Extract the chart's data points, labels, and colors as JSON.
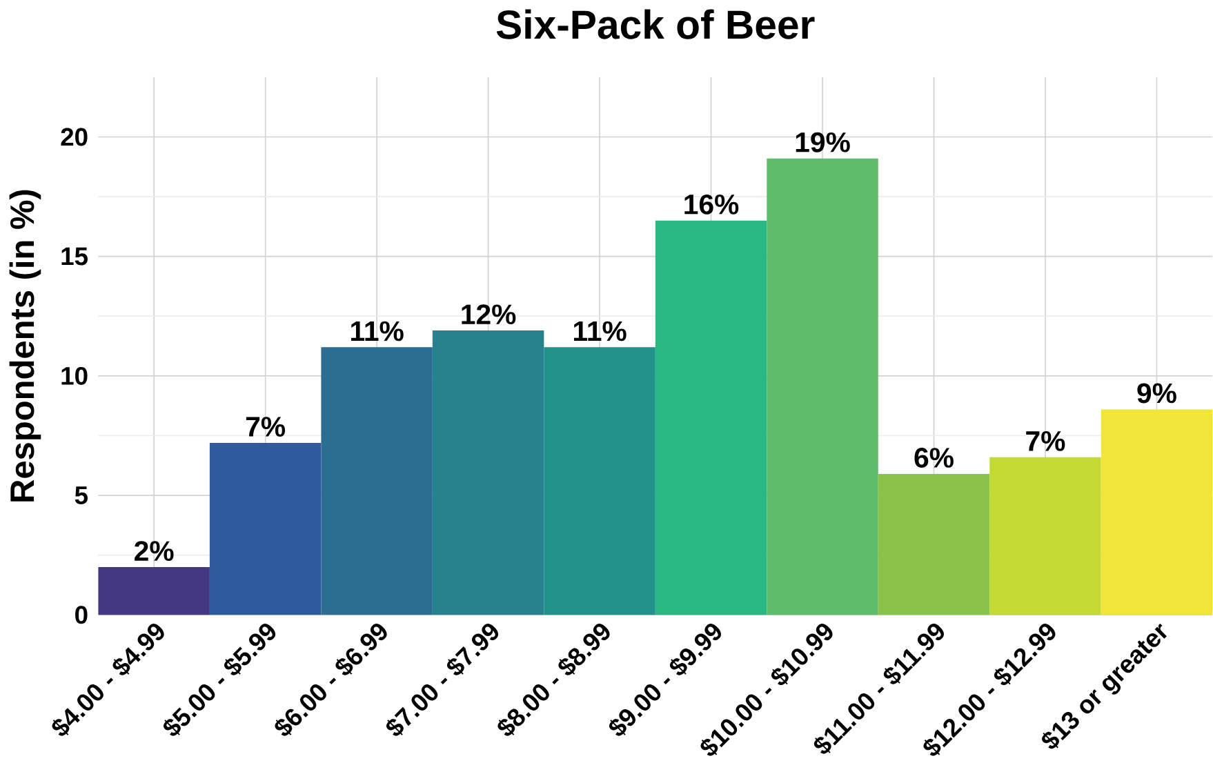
{
  "chart_data": {
    "type": "bar",
    "title": "Six-Pack of Beer",
    "ylabel": "Respondents (in %)",
    "categories": [
      "$4.00 - $4.99",
      "$5.00 - $5.99",
      "$6.00 - $6.99",
      "$7.00 - $7.99",
      "$8.00 - $8.99",
      "$9.00 - $9.99",
      "$10.00 - $10.99",
      "$11.00 - $11.99",
      "$12.00 - $12.99",
      "$13 or greater"
    ],
    "values": [
      2.0,
      7.2,
      11.2,
      11.9,
      11.2,
      16.5,
      19.1,
      5.9,
      6.6,
      8.6
    ],
    "value_labels": [
      "2%",
      "7%",
      "11%",
      "12%",
      "11%",
      "16%",
      "19%",
      "6%",
      "7%",
      "9%"
    ],
    "colors": [
      "#453882",
      "#2f5a9c",
      "#2c6e91",
      "#26838e",
      "#209289",
      "#2ab882",
      "#5ebd6b",
      "#8bc34a",
      "#c4d934",
      "#f1e539"
    ],
    "ylim": [
      0,
      22.5
    ],
    "yticks": [
      0,
      5,
      10,
      15,
      20
    ],
    "grid": true
  }
}
